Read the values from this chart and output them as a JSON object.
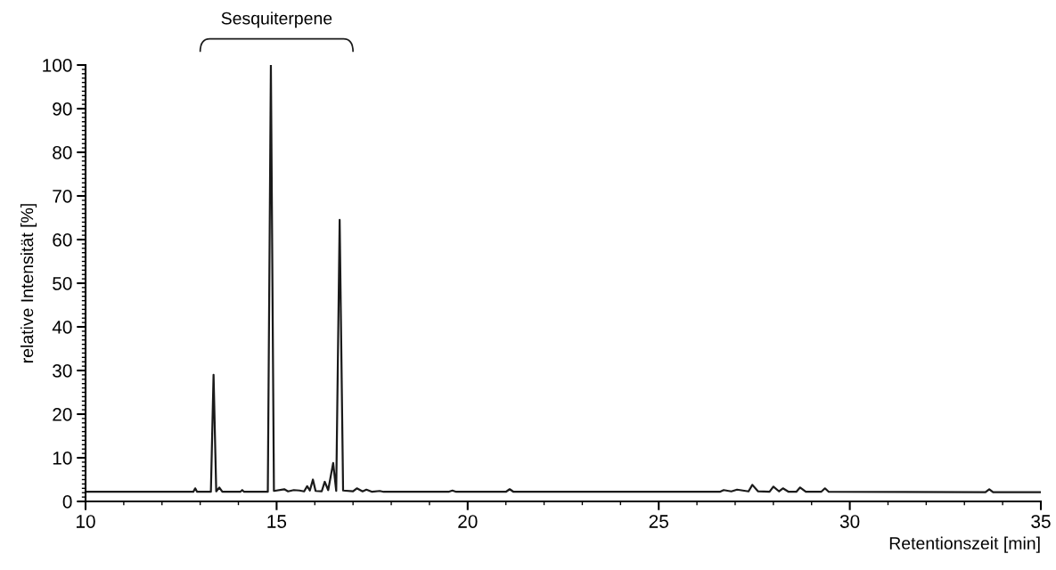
{
  "chart_data": {
    "type": "line",
    "xlabel": "Retentionszeit [min]",
    "ylabel": "relative Intensität [%]",
    "annotations": [
      "Sesquiterpene"
    ],
    "xlim": [
      10,
      35
    ],
    "xticks": [
      10,
      15,
      20,
      25,
      30,
      35
    ],
    "ylim": [
      0,
      100
    ],
    "yticks": [
      0,
      10,
      20,
      30,
      40,
      50,
      60,
      70,
      80,
      90,
      100
    ],
    "grid": false,
    "marker": "none",
    "line_style": "solid",
    "series": [
      {
        "color": "#1a1a1a",
        "x": [
          10,
          11,
          12,
          12.82,
          12.87,
          12.92,
          13.28,
          13.35,
          13.42,
          13.5,
          13.58,
          14.05,
          14.1,
          14.15,
          14.77,
          14.85,
          14.93,
          15.2,
          15.3,
          15.45,
          15.6,
          15.72,
          15.8,
          15.87,
          15.95,
          16.02,
          16.18,
          16.26,
          16.35,
          16.48,
          16.56,
          16.65,
          16.74,
          17.0,
          17.1,
          17.25,
          17.35,
          17.5,
          17.7,
          17.8,
          19.5,
          19.6,
          19.7,
          21.0,
          21.1,
          21.2,
          24,
          26.6,
          26.7,
          26.9,
          27.05,
          27.35,
          27.45,
          27.6,
          27.9,
          28.0,
          28.15,
          28.25,
          28.4,
          28.6,
          28.7,
          28.85,
          29.25,
          29.35,
          29.45,
          33.55,
          33.65,
          33.75,
          35
        ],
        "values": [
          2.2,
          2.2,
          2.2,
          2.2,
          3.0,
          2.2,
          2.2,
          29,
          2.3,
          3.2,
          2.2,
          2.2,
          2.6,
          2.2,
          2.2,
          100,
          2.4,
          2.8,
          2.3,
          2.6,
          2.5,
          2.3,
          3.5,
          2.5,
          5.0,
          2.4,
          2.3,
          4.5,
          2.6,
          8.8,
          2.4,
          64.5,
          2.5,
          2.3,
          3.0,
          2.3,
          2.7,
          2.2,
          2.4,
          2.2,
          2.2,
          2.5,
          2.2,
          2.2,
          2.8,
          2.2,
          2.2,
          2.2,
          2.6,
          2.3,
          2.7,
          2.3,
          3.8,
          2.3,
          2.2,
          3.4,
          2.3,
          3.0,
          2.2,
          2.2,
          3.2,
          2.2,
          2.2,
          3.0,
          2.2,
          2.1,
          2.8,
          2.1,
          2.1
        ]
      }
    ]
  }
}
